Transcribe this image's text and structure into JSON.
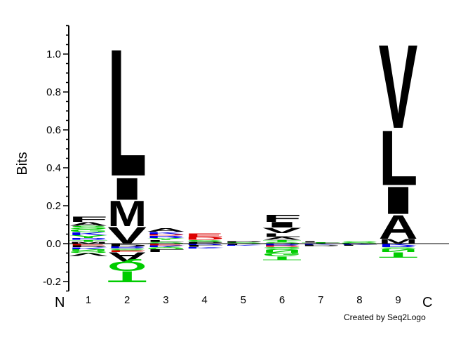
{
  "chart_data": {
    "type": "sequence-logo",
    "ylabel": "Bits",
    "ylim": [
      -0.25,
      1.15
    ],
    "yticks": [
      {
        "value": 1.0,
        "label": "1.0"
      },
      {
        "value": 0.8,
        "label": "0.8"
      },
      {
        "value": 0.6,
        "label": "0.6"
      },
      {
        "value": 0.4,
        "label": "0.4"
      },
      {
        "value": 0.2,
        "label": "0.2"
      },
      {
        "value": 0.0,
        "label": "0.0"
      },
      {
        "value": -0.2,
        "label": "-0.2"
      }
    ],
    "positions": [
      "1",
      "2",
      "3",
      "4",
      "5",
      "6",
      "7",
      "8",
      "9"
    ],
    "n_terminus_label": "N",
    "c_terminus_label": "C",
    "credit": "Created by Seq2Logo",
    "colors": {
      "hydrophobic": "#000000",
      "polar": "#00cc00",
      "basic": "#0000ee",
      "acidic": "#dd0000",
      "other": "#7a7a7a"
    },
    "columns": [
      {
        "position": "1",
        "above": [
          {
            "letter": "F",
            "height": 0.03,
            "color": "#000000"
          },
          {
            "letter": "A",
            "height": 0.02,
            "color": "#000000"
          },
          {
            "letter": "S",
            "height": 0.02,
            "color": "#00cc00"
          },
          {
            "letter": "G",
            "height": 0.015,
            "color": "#00cc00"
          },
          {
            "letter": "K",
            "height": 0.015,
            "color": "#0000ee"
          },
          {
            "letter": "Y",
            "height": 0.015,
            "color": "#00cc00"
          },
          {
            "letter": "R",
            "height": 0.01,
            "color": "#0000ee"
          },
          {
            "letter": "T",
            "height": 0.01,
            "color": "#00cc00"
          },
          {
            "letter": "M",
            "height": 0.01,
            "color": "#000000"
          }
        ],
        "below": [
          {
            "letter": "E",
            "height": 0.01,
            "color": "#dd0000"
          },
          {
            "letter": "P",
            "height": 0.01,
            "color": "#000000"
          },
          {
            "letter": "K",
            "height": 0.01,
            "color": "#0000ee"
          },
          {
            "letter": "N",
            "height": 0.01,
            "color": "#00cc00"
          },
          {
            "letter": "Q",
            "height": 0.01,
            "color": "#00cc00"
          },
          {
            "letter": "V",
            "height": 0.015,
            "color": "#000000"
          }
        ]
      },
      {
        "position": "2",
        "above": [
          {
            "letter": "L",
            "height": 0.7,
            "color": "#000000"
          },
          {
            "letter": "I",
            "height": 0.12,
            "color": "#000000"
          },
          {
            "letter": "M",
            "height": 0.14,
            "color": "#000000"
          },
          {
            "letter": "V",
            "height": 0.09,
            "color": "#000000"
          }
        ],
        "below": [
          {
            "letter": "P",
            "height": 0.015,
            "color": "#000000"
          },
          {
            "letter": "R",
            "height": 0.01,
            "color": "#0000ee"
          },
          {
            "letter": "S",
            "height": 0.01,
            "color": "#00cc00"
          },
          {
            "letter": "E",
            "height": 0.01,
            "color": "#dd0000"
          },
          {
            "letter": "A",
            "height": 0.05,
            "color": "#000000"
          },
          {
            "letter": "Q",
            "height": 0.05,
            "color": "#00cc00"
          },
          {
            "letter": "T",
            "height": 0.06,
            "color": "#00cc00"
          }
        ]
      },
      {
        "position": "3",
        "above": [
          {
            "letter": "A",
            "height": 0.02,
            "color": "#000000"
          },
          {
            "letter": "K",
            "height": 0.012,
            "color": "#0000ee"
          },
          {
            "letter": "D",
            "height": 0.008,
            "color": "#dd0000"
          },
          {
            "letter": "R",
            "height": 0.012,
            "color": "#0000ee"
          },
          {
            "letter": "Y",
            "height": 0.01,
            "color": "#00cc00"
          },
          {
            "letter": "L",
            "height": 0.01,
            "color": "#000000"
          },
          {
            "letter": "S",
            "height": 0.01,
            "color": "#00cc00"
          }
        ],
        "below": [
          {
            "letter": "E",
            "height": 0.01,
            "color": "#dd0000"
          },
          {
            "letter": "K",
            "height": 0.01,
            "color": "#0000ee"
          },
          {
            "letter": "Q",
            "height": 0.01,
            "color": "#00cc00"
          },
          {
            "letter": "L",
            "height": 0.015,
            "color": "#000000"
          }
        ]
      },
      {
        "position": "4",
        "above": [
          {
            "letter": "E",
            "height": 0.02,
            "color": "#dd0000"
          },
          {
            "letter": "D",
            "height": 0.015,
            "color": "#dd0000"
          },
          {
            "letter": "S",
            "height": 0.01,
            "color": "#00cc00"
          },
          {
            "letter": "P",
            "height": 0.01,
            "color": "#000000"
          }
        ],
        "below": [
          {
            "letter": "R",
            "height": 0.008,
            "color": "#0000ee"
          },
          {
            "letter": "L",
            "height": 0.01,
            "color": "#000000"
          },
          {
            "letter": "K",
            "height": 0.008,
            "color": "#0000ee"
          }
        ]
      },
      {
        "position": "5",
        "above": [
          {
            "letter": "P",
            "height": 0.008,
            "color": "#000000"
          },
          {
            "letter": "S",
            "height": 0.006,
            "color": "#00cc00"
          }
        ],
        "below": [
          {
            "letter": "L",
            "height": 0.006,
            "color": "#000000"
          },
          {
            "letter": "K",
            "height": 0.005,
            "color": "#0000ee"
          }
        ]
      },
      {
        "position": "6",
        "above": [
          {
            "letter": "F",
            "height": 0.04,
            "color": "#000000"
          },
          {
            "letter": "I",
            "height": 0.03,
            "color": "#000000"
          },
          {
            "letter": "V",
            "height": 0.03,
            "color": "#000000"
          },
          {
            "letter": "L",
            "height": 0.02,
            "color": "#000000"
          },
          {
            "letter": "A",
            "height": 0.015,
            "color": "#000000"
          },
          {
            "letter": "T",
            "height": 0.01,
            "color": "#00cc00"
          },
          {
            "letter": "S",
            "height": 0.01,
            "color": "#00cc00"
          }
        ],
        "below": [
          {
            "letter": "R",
            "height": 0.01,
            "color": "#0000ee"
          },
          {
            "letter": "D",
            "height": 0.008,
            "color": "#dd0000"
          },
          {
            "letter": "S",
            "height": 0.015,
            "color": "#00cc00"
          },
          {
            "letter": "N",
            "height": 0.015,
            "color": "#00cc00"
          },
          {
            "letter": "G",
            "height": 0.02,
            "color": "#00cc00"
          },
          {
            "letter": "T",
            "height": 0.02,
            "color": "#00cc00"
          }
        ]
      },
      {
        "position": "7",
        "above": [
          {
            "letter": "L",
            "height": 0.008,
            "color": "#000000"
          },
          {
            "letter": "T",
            "height": 0.006,
            "color": "#00cc00"
          }
        ],
        "below": [
          {
            "letter": "K",
            "height": 0.005,
            "color": "#0000ee"
          },
          {
            "letter": "P",
            "height": 0.006,
            "color": "#000000"
          }
        ]
      },
      {
        "position": "8",
        "above": [
          {
            "letter": "S",
            "height": 0.006,
            "color": "#00cc00"
          },
          {
            "letter": "G",
            "height": 0.005,
            "color": "#00cc00"
          }
        ],
        "below": [
          {
            "letter": "K",
            "height": 0.005,
            "color": "#0000ee"
          },
          {
            "letter": "L",
            "height": 0.005,
            "color": "#000000"
          }
        ]
      },
      {
        "position": "9",
        "above": [
          {
            "letter": "V",
            "height": 0.46,
            "color": "#000000"
          },
          {
            "letter": "L",
            "height": 0.3,
            "color": "#000000"
          },
          {
            "letter": "I",
            "height": 0.15,
            "color": "#000000"
          },
          {
            "letter": "A",
            "height": 0.13,
            "color": "#000000"
          },
          {
            "letter": "M",
            "height": 0.025,
            "color": "#000000"
          }
        ],
        "below": [
          {
            "letter": "K",
            "height": 0.01,
            "color": "#0000ee"
          },
          {
            "letter": "R",
            "height": 0.01,
            "color": "#0000ee"
          },
          {
            "letter": "S",
            "height": 0.01,
            "color": "#00cc00"
          },
          {
            "letter": "N",
            "height": 0.015,
            "color": "#00cc00"
          },
          {
            "letter": "T",
            "height": 0.03,
            "color": "#00cc00"
          }
        ]
      }
    ]
  }
}
